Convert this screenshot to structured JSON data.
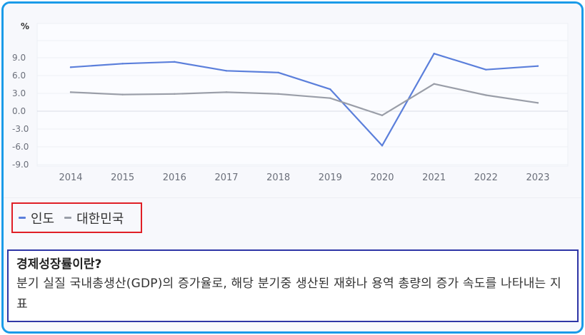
{
  "chart_data": {
    "type": "line",
    "unit": "%",
    "categories": [
      "2014",
      "2015",
      "2016",
      "2017",
      "2018",
      "2019",
      "2020",
      "2021",
      "2022",
      "2023"
    ],
    "y_ticks": [
      "9.0",
      "6.0",
      "3.0",
      "0.0",
      "-3.0",
      "-6.0",
      "-9.0"
    ],
    "ylim": [
      -9,
      9
    ],
    "grid": true,
    "legend_position": "bottom-left",
    "series": [
      {
        "name": "인도",
        "color": "#5b7fdb",
        "values": [
          7.4,
          8.0,
          8.3,
          6.8,
          6.5,
          3.7,
          -5.8,
          9.7,
          7.0,
          7.6
        ]
      },
      {
        "name": "대한민국",
        "color": "#9a9ea8",
        "values": [
          3.2,
          2.8,
          2.9,
          3.2,
          2.9,
          2.2,
          -0.7,
          4.6,
          2.7,
          1.4
        ]
      }
    ]
  },
  "definition": {
    "title": "경제성장률이란?",
    "body": "분기 실질 국내총생산(GDP)의 증가율로, 해당 분기중 생산된 재화나 용역 총량의 증가 속도를 나타내는 지표"
  },
  "colors": {
    "frame_border": "#1a9be8",
    "legend_border": "#e01f26",
    "definition_border": "#2e35a6"
  }
}
